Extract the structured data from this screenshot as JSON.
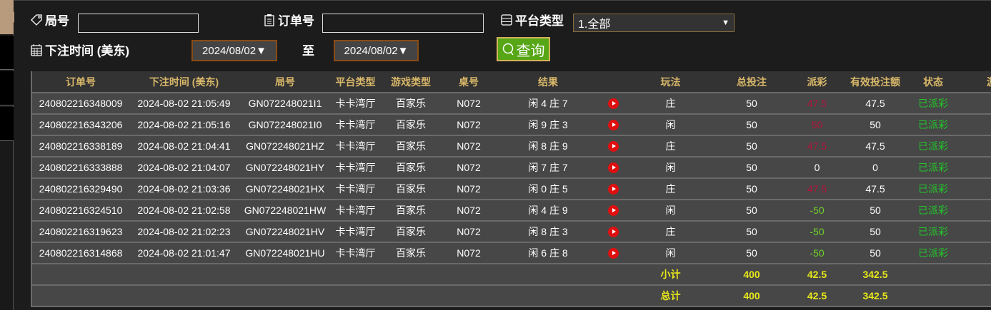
{
  "filters": {
    "round_label": "局号",
    "round_value": "",
    "order_label": "订单号",
    "order_value": "",
    "platform_label": "平台类型",
    "platform_value": "1.全部",
    "time_label": "下注时间 (美东)",
    "date_from": "2024/08/02▼",
    "to_label": "至",
    "date_to": "2024/08/02▼",
    "query_label": "查询"
  },
  "columns": [
    "订单号",
    "下注时间 (美东)",
    "局号",
    "平台类型",
    "游戏类型",
    "桌号",
    "结果",
    "",
    "玩法",
    "总投注",
    "派彩",
    "有效投注额",
    "状态",
    "游戏"
  ],
  "rows": [
    {
      "order": "240802216348009",
      "time": "2024-08-02 21:05:49",
      "round": "GN072248021I1",
      "platform": "卡卡湾厅",
      "game": "百家乐",
      "table": "N072",
      "result": "闲 4 庄 7",
      "bet": "庄",
      "total": "50",
      "payout": "47.5",
      "payout_color": "red",
      "valid": "47.5",
      "status": "已派彩"
    },
    {
      "order": "240802216343206",
      "time": "2024-08-02 21:05:16",
      "round": "GN072248021I0",
      "platform": "卡卡湾厅",
      "game": "百家乐",
      "table": "N072",
      "result": "闲 9 庄 3",
      "bet": "闲",
      "total": "50",
      "payout": "50",
      "payout_color": "red",
      "valid": "50",
      "status": "已派彩"
    },
    {
      "order": "240802216338189",
      "time": "2024-08-02 21:04:41",
      "round": "GN072248021HZ",
      "platform": "卡卡湾厅",
      "game": "百家乐",
      "table": "N072",
      "result": "闲 8 庄 9",
      "bet": "庄",
      "total": "50",
      "payout": "47.5",
      "payout_color": "red",
      "valid": "47.5",
      "status": "已派彩"
    },
    {
      "order": "240802216333888",
      "time": "2024-08-02 21:04:07",
      "round": "GN072248021HY",
      "platform": "卡卡湾厅",
      "game": "百家乐",
      "table": "N072",
      "result": "闲 7 庄 7",
      "bet": "闲",
      "total": "50",
      "payout": "0",
      "payout_color": "white",
      "valid": "0",
      "status": "已派彩"
    },
    {
      "order": "240802216329490",
      "time": "2024-08-02 21:03:36",
      "round": "GN072248021HX",
      "platform": "卡卡湾厅",
      "game": "百家乐",
      "table": "N072",
      "result": "闲 0 庄 5",
      "bet": "庄",
      "total": "50",
      "payout": "47.5",
      "payout_color": "red",
      "valid": "47.5",
      "status": "已派彩"
    },
    {
      "order": "240802216324510",
      "time": "2024-08-02 21:02:58",
      "round": "GN072248021HW",
      "platform": "卡卡湾厅",
      "game": "百家乐",
      "table": "N072",
      "result": "闲 4 庄 9",
      "bet": "闲",
      "total": "50",
      "payout": "-50",
      "payout_color": "green",
      "valid": "50",
      "status": "已派彩"
    },
    {
      "order": "240802216319623",
      "time": "2024-08-02 21:02:23",
      "round": "GN072248021HV",
      "platform": "卡卡湾厅",
      "game": "百家乐",
      "table": "N072",
      "result": "闲 8 庄 3",
      "bet": "庄",
      "total": "50",
      "payout": "-50",
      "payout_color": "green",
      "valid": "50",
      "status": "已派彩"
    },
    {
      "order": "240802216314868",
      "time": "2024-08-02 21:01:47",
      "round": "GN072248021HU",
      "platform": "卡卡湾厅",
      "game": "百家乐",
      "table": "N072",
      "result": "闲 6 庄 8",
      "bet": "闲",
      "total": "50",
      "payout": "-50",
      "payout_color": "green",
      "valid": "50",
      "status": "已派彩"
    }
  ],
  "subtotal": {
    "label": "小计",
    "total": "400",
    "payout": "42.5",
    "valid": "342.5"
  },
  "grand_total": {
    "label": "总计",
    "total": "400",
    "payout": "42.5",
    "valid": "342.5"
  },
  "colors": {
    "header_text": "#d9b86a",
    "red": "#b3163c",
    "green": "#6fd12a",
    "status": "#22c52a",
    "total": "#e8e81a",
    "button": "#56a615"
  }
}
